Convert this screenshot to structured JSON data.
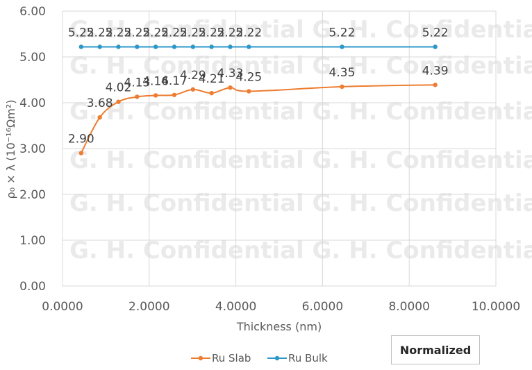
{
  "chart_data": {
    "type": "line",
    "xlabel": "Thickness (nm)",
    "ylabel": "ρ₀ × λ (10⁻¹⁶Ωm²)",
    "xlim": [
      0,
      10
    ],
    "ylim": [
      0,
      6
    ],
    "x_ticks": [
      "0.0000",
      "2.0000",
      "4.0000",
      "6.0000",
      "8.0000",
      "10.0000"
    ],
    "y_ticks": [
      "0.00",
      "1.00",
      "2.00",
      "3.00",
      "4.00",
      "5.00",
      "6.00"
    ],
    "grid": "both",
    "legend": "bottom",
    "series": [
      {
        "name": "Ru Slab",
        "color": "#ED7D31",
        "x": [
          0.43,
          0.86,
          1.29,
          1.72,
          2.15,
          2.58,
          3.01,
          3.44,
          3.87,
          4.3,
          6.45,
          8.6
        ],
        "y": [
          2.9,
          3.68,
          4.02,
          4.13,
          4.16,
          4.17,
          4.29,
          4.21,
          4.33,
          4.25,
          4.35,
          4.39
        ],
        "labels": [
          "2.90",
          "3.68",
          "4.02",
          "4.13",
          "4.16",
          "4.17",
          "4.29",
          "4.21",
          "4.33",
          "4.25",
          "4.35",
          "4.39"
        ]
      },
      {
        "name": "Ru Bulk",
        "color": "#2E97C8",
        "x": [
          0.43,
          0.86,
          1.29,
          1.72,
          2.15,
          2.58,
          3.01,
          3.44,
          3.87,
          4.3,
          6.45,
          8.6
        ],
        "y": [
          5.22,
          5.22,
          5.22,
          5.22,
          5.22,
          5.22,
          5.22,
          5.22,
          5.22,
          5.22,
          5.22,
          5.22
        ],
        "labels": [
          "5.22",
          "5.22",
          "5.22",
          "5.22",
          "5.22",
          "5.22",
          "5.22",
          "5.22",
          "5.22",
          "5.22",
          "5.22",
          "5.22"
        ]
      }
    ],
    "watermark": "G. H. Confidential",
    "annotation": "Normalized"
  }
}
